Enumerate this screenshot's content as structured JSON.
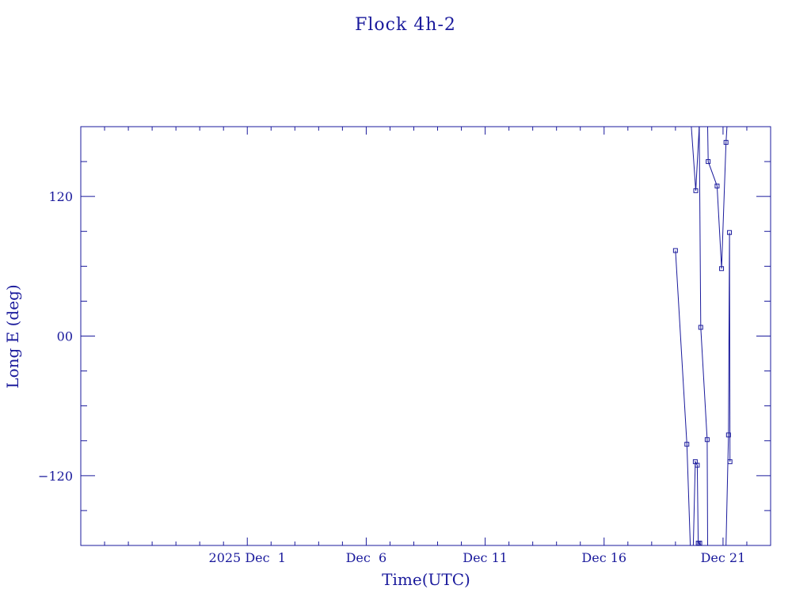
{
  "chart_data": {
    "type": "line",
    "title": "Flock 4h-2",
    "xlabel": "Time(UTC)",
    "ylabel": "Long E (deg)",
    "xlim": [
      "2025-11-24T00:00",
      "2025-12-23T00:00"
    ],
    "ylim": [
      -180,
      180
    ],
    "x_ticks": [
      {
        "date": "2025-12-01",
        "label": "2025 Dec  1"
      },
      {
        "date": "2025-12-06",
        "label": "Dec  6"
      },
      {
        "date": "2025-12-11",
        "label": "Dec 11"
      },
      {
        "date": "2025-12-16",
        "label": "Dec 16"
      },
      {
        "date": "2025-12-21",
        "label": "Dec 21"
      }
    ],
    "y_ticks": [
      {
        "value": 120,
        "label": "120"
      },
      {
        "value": 0,
        "label": "00"
      },
      {
        "value": -120,
        "label": "−120"
      }
    ],
    "color": "#1a1a9c",
    "grid": false,
    "series": [
      {
        "points": [
          [
            "2025-12-19T00:00",
            73.5
          ],
          [
            "2025-12-19T11:30",
            -93
          ],
          [
            "2025-12-19T15:00",
            -180
          ]
        ]
      },
      {
        "points": [
          [
            "2025-12-19T16:00",
            180
          ],
          [
            "2025-12-19T20:30",
            125
          ],
          [
            "2025-12-20T00:00",
            180
          ]
        ]
      },
      {
        "points": [
          [
            "2025-12-19T18:00",
            -180
          ],
          [
            "2025-12-19T20:00",
            -108
          ],
          [
            "2025-12-19T22:00",
            -111
          ],
          [
            "2025-12-19T23:00",
            -178
          ],
          [
            "2025-12-20T00:30",
            -178
          ],
          [
            "2025-12-20T01:30",
            -180
          ]
        ]
      },
      {
        "points": [
          [
            "2025-12-20T00:00",
            180
          ],
          [
            "2025-12-20T01:30",
            7.5
          ],
          [
            "2025-12-20T08:00",
            -89
          ],
          [
            "2025-12-20T08:30",
            -180
          ]
        ]
      },
      {
        "points": [
          [
            "2025-12-20T08:30",
            180
          ],
          [
            "2025-12-20T09:00",
            150
          ],
          [
            "2025-12-20T18:00",
            129
          ],
          [
            "2025-12-20T22:30",
            58
          ],
          [
            "2025-12-21T03:00",
            166.5
          ],
          [
            "2025-12-21T04:00",
            180
          ]
        ]
      },
      {
        "points": [
          [
            "2025-12-21T03:00",
            -180
          ],
          [
            "2025-12-21T05:30",
            -85
          ],
          [
            "2025-12-21T06:30",
            89
          ],
          [
            "2025-12-21T07:00",
            -108
          ]
        ]
      }
    ]
  }
}
